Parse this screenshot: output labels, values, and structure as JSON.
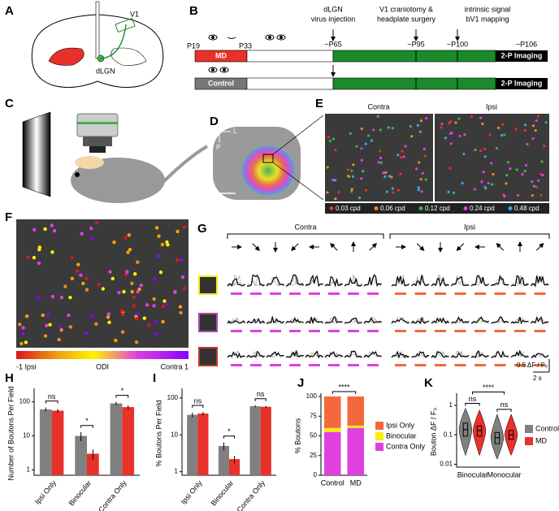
{
  "panels": {
    "A": {
      "label": "A",
      "v1": "V1",
      "dlgn": "dLGN"
    },
    "B": {
      "label": "B",
      "p19": "P19",
      "p33": "P33",
      "p65": "~P65",
      "p95": "~P95",
      "p100": "~P100",
      "p106": "~P106",
      "md": "MD",
      "control": "Control",
      "imaging": "2-P Imaging",
      "injection": [
        "dLGN",
        "virus injection"
      ],
      "surgery": [
        "V1 craniotomy &",
        "headplate surgery"
      ],
      "mapping": [
        "intrinsic signal",
        "bV1 mapping"
      ]
    },
    "C": {
      "label": "C"
    },
    "D": {
      "label": "D",
      "lateral": "L",
      "posterior": "P"
    },
    "E": {
      "label": "E",
      "contra": "Contra",
      "ipsi": "Ipsi",
      "legend": [
        {
          "name": "0.03 cpd",
          "color": "#e8312a"
        },
        {
          "name": "0.06 cpd",
          "color": "#f08a24"
        },
        {
          "name": "0.12 cpd",
          "color": "#3cb44b"
        },
        {
          "name": "0.24 cpd",
          "color": "#e040e0"
        },
        {
          "name": "0.48 cpd",
          "color": "#3aa6e8"
        }
      ]
    },
    "F": {
      "label": "F",
      "left": "-1 Ipsi",
      "middle": "ODI",
      "right": "Contra 1"
    },
    "G": {
      "label": "G",
      "contra": "Contra",
      "ipsi": "Ipsi",
      "scale_y": "0.5 ΔF / F₀",
      "scale_x": "2 s"
    }
  },
  "chart_data": [
    {
      "label": "H",
      "type": "bar",
      "scale": "log",
      "ylabel": "Number of Boutons Per Field",
      "categories": [
        "Ipsi Only",
        "Binocular",
        "Contra Only"
      ],
      "series": [
        {
          "color": "#808080",
          "values": [
            60,
            10,
            90
          ],
          "errors": [
            8,
            3,
            10
          ]
        },
        {
          "color": "#e8312a",
          "values": [
            55,
            3,
            70
          ],
          "errors": [
            7,
            1,
            9
          ]
        }
      ],
      "ylim": [
        0.7,
        200
      ],
      "yticks": [
        1,
        10,
        100
      ],
      "significance": [
        "ns",
        "*",
        "*"
      ]
    },
    {
      "label": "I",
      "type": "bar",
      "scale": "log",
      "ylabel": "% Boutons Per Field",
      "categories": [
        "Ipsi Only",
        "Binocular",
        "Contra Only"
      ],
      "series": [
        {
          "color": "#808080",
          "values": [
            35,
            5,
            60
          ],
          "errors": [
            5,
            1.2,
            4
          ]
        },
        {
          "color": "#e8312a",
          "values": [
            38,
            2.2,
            58
          ],
          "errors": [
            4,
            0.5,
            3
          ]
        }
      ],
      "ylim": [
        0.8,
        150
      ],
      "yticks": [
        1,
        10,
        100
      ],
      "significance": [
        "ns",
        "*",
        "ns"
      ]
    },
    {
      "label": "J",
      "type": "stacked_bar",
      "ylabel": "% Boutons",
      "categories": [
        "Control",
        "MD"
      ],
      "series": [
        {
          "name": "Contra Only",
          "color": "#e040e0",
          "values": [
            55,
            60
          ]
        },
        {
          "name": "Binocular",
          "color": "#f7ec13",
          "values": [
            5,
            3
          ]
        },
        {
          "name": "Ipsi Only",
          "color": "#f4683d",
          "values": [
            40,
            37
          ]
        }
      ],
      "ylim": [
        0,
        100
      ],
      "yticks": [
        0,
        25,
        50,
        75,
        100
      ],
      "significance": "****"
    },
    {
      "label": "K",
      "type": "violin",
      "scale": "log",
      "ylabel": "Bouton ΔF / F₀",
      "categories": [
        "Binocular",
        "Monocular"
      ],
      "series": [
        {
          "name": "Control",
          "color": "#808080",
          "min": [
            0.02,
            0.015
          ],
          "q1": [
            0.09,
            0.05
          ],
          "median": [
            0.15,
            0.08
          ],
          "q3": [
            0.25,
            0.12
          ],
          "max": [
            0.8,
            0.5
          ]
        },
        {
          "name": "MD",
          "color": "#e8312a",
          "min": [
            0.02,
            0.02
          ],
          "q1": [
            0.09,
            0.07
          ],
          "median": [
            0.14,
            0.1
          ],
          "q3": [
            0.2,
            0.14
          ],
          "max": [
            0.7,
            0.5
          ]
        }
      ],
      "ylim": [
        0.008,
        2
      ],
      "yticks": [
        0.01,
        0.1,
        1
      ],
      "significance": [
        "ns",
        "ns",
        "****"
      ]
    }
  ]
}
